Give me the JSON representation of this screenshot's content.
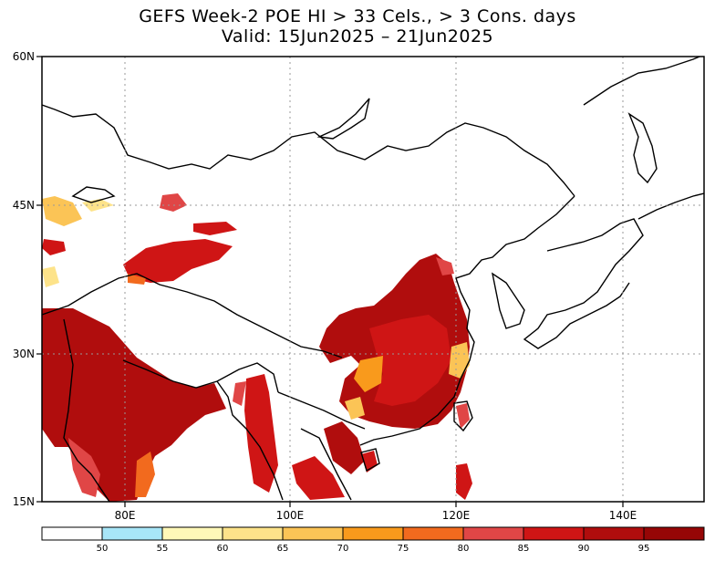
{
  "title": {
    "line1": "GEFS Week-2 POE HI > 33 Cels., > 3 Cons. days",
    "line2": "Valid: 15Jun2025 – 21Jun2025"
  },
  "axes": {
    "y_ticks": [
      "60N",
      "45N",
      "30N",
      "15N"
    ],
    "x_ticks": [
      "80E",
      "100E",
      "120E",
      "140E"
    ]
  },
  "colorbar": {
    "labels": [
      "50",
      "55",
      "60",
      "65",
      "70",
      "75",
      "80",
      "85",
      "90",
      "95"
    ],
    "colors": [
      "#ffffff",
      "#a8e6f8",
      "#fff8b8",
      "#fde38a",
      "#fbc456",
      "#f99a1c",
      "#f26a1e",
      "#e04646",
      "#cf1515",
      "#b00d0d",
      "#960606"
    ]
  },
  "map": {
    "region": "East Asia",
    "lon_range": [
      72,
      150
    ],
    "lat_range": [
      15,
      60
    ],
    "grid": "dotted"
  }
}
